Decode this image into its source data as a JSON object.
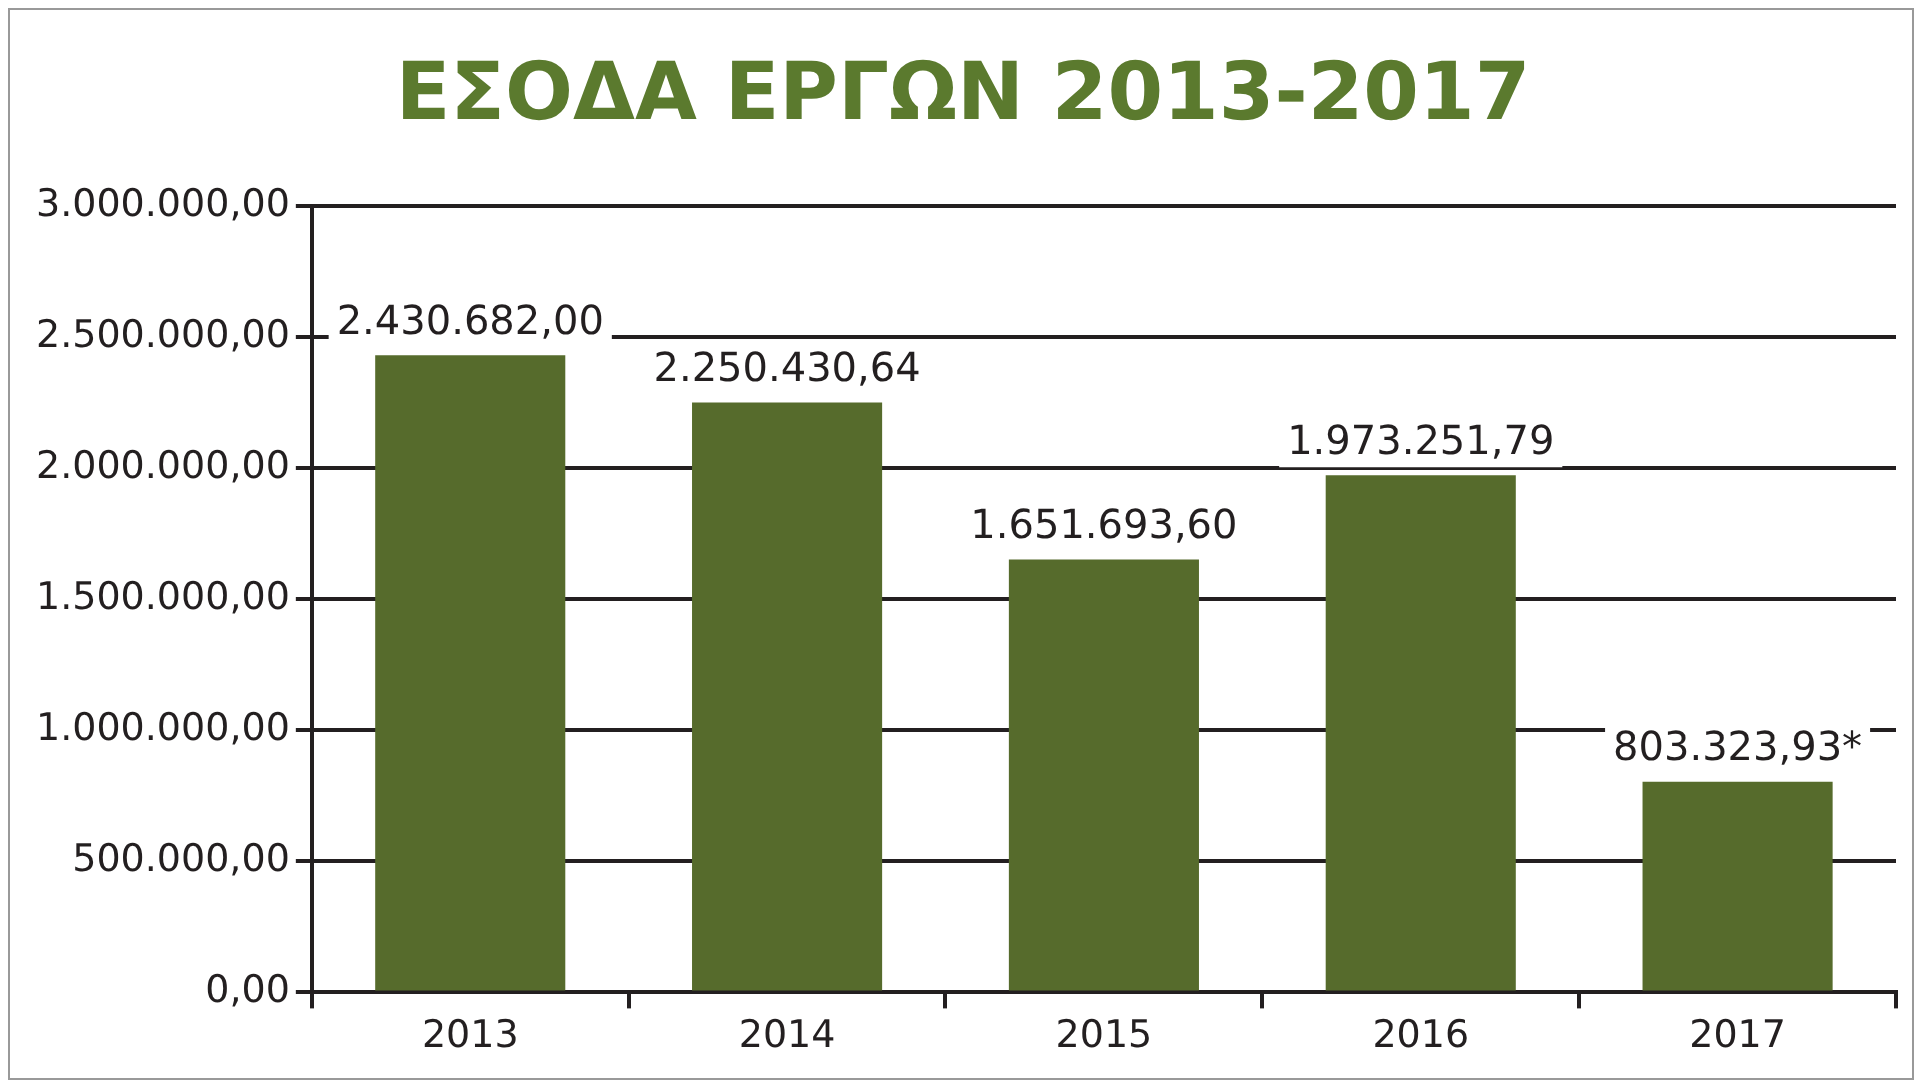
{
  "chart_data": {
    "type": "bar",
    "title": "ΕΣΟΔΑ ΕΡΓΩΝ 2013-2017",
    "categories": [
      "2013",
      "2014",
      "2015",
      "2016",
      "2017"
    ],
    "values": [
      2430682.0,
      2250430.64,
      1651693.6,
      1973251.79,
      803323.93
    ],
    "value_labels": [
      "2.430.682,00",
      "2.250.430,64",
      "1.651.693,60",
      "1.973.251,79",
      "803.323,93*"
    ],
    "color": "#566b2c",
    "ylim": [
      0,
      3000000
    ],
    "yticks": [
      {
        "value": 0,
        "label": "0,00"
      },
      {
        "value": 500000,
        "label": "500.000,00"
      },
      {
        "value": 1000000,
        "label": "1.000.000,00"
      },
      {
        "value": 1500000,
        "label": "1.500.000,00"
      },
      {
        "value": 2000000,
        "label": "2.000.000,00"
      },
      {
        "value": 2500000,
        "label": "2.500.000,00"
      },
      {
        "value": 3000000,
        "label": "3.000.000,00"
      }
    ],
    "grid": "y",
    "legend": false
  }
}
